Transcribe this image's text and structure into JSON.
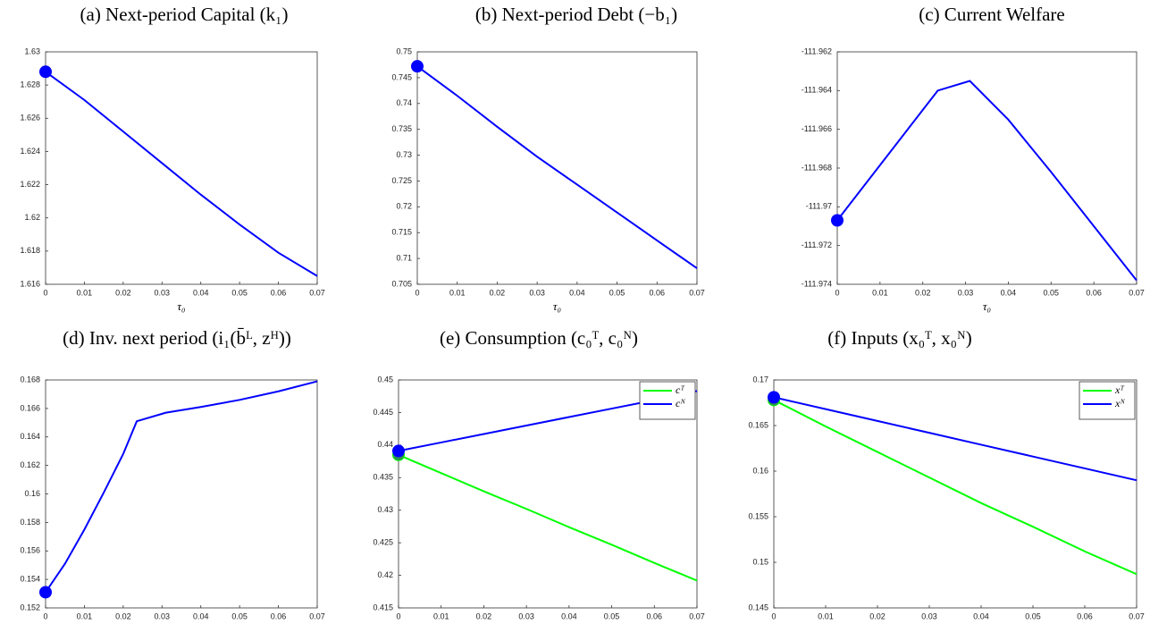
{
  "chart_data": [
    {
      "type": "line",
      "title": "(a) Next-period Capital (k₁)",
      "xlabel": "τ₀",
      "x": [
        0,
        0.01,
        0.02,
        0.03,
        0.04,
        0.05,
        0.06,
        0.07
      ],
      "series": [
        {
          "color": "#0000ff",
          "values": [
            1.6288,
            1.6271,
            1.6252,
            1.6233,
            1.6214,
            1.6196,
            1.6179,
            1.6165
          ]
        }
      ],
      "xlim": [
        0,
        0.07
      ],
      "ylim": [
        1.616,
        1.63
      ],
      "xticks": [
        0,
        0.01,
        0.02,
        0.03,
        0.04,
        0.05,
        0.06,
        0.07
      ],
      "yticks": [
        1.616,
        1.618,
        1.62,
        1.622,
        1.624,
        1.626,
        1.628,
        1.63
      ],
      "start_marker": true
    },
    {
      "type": "line",
      "title": "(b) Next-period Debt (−b₁)",
      "xlabel": "τ₀",
      "x": [
        0,
        0.01,
        0.02,
        0.03,
        0.04,
        0.05,
        0.06,
        0.07
      ],
      "series": [
        {
          "color": "#0000ff",
          "values": [
            0.7472,
            0.7415,
            0.7355,
            0.7297,
            0.7243,
            0.7189,
            0.7135,
            0.7081
          ]
        }
      ],
      "xlim": [
        0,
        0.07
      ],
      "ylim": [
        0.705,
        0.75
      ],
      "xticks": [
        0,
        0.01,
        0.02,
        0.03,
        0.04,
        0.05,
        0.06,
        0.07
      ],
      "yticks": [
        0.705,
        0.71,
        0.715,
        0.72,
        0.725,
        0.73,
        0.735,
        0.74,
        0.745,
        0.75
      ],
      "start_marker": true
    },
    {
      "type": "line",
      "title": "(c) Current Welfare",
      "xlabel": "τ₀",
      "x": [
        0,
        0.0235,
        0.031,
        0.04,
        0.05,
        0.06,
        0.07
      ],
      "series": [
        {
          "color": "#0000ff",
          "values": [
            -111.9707,
            -111.964,
            -111.9635,
            -111.9655,
            -111.9682,
            -111.971,
            -111.9738
          ]
        }
      ],
      "xlim": [
        0,
        0.07
      ],
      "ylim": [
        -111.974,
        -111.962
      ],
      "xticks": [
        0,
        0.01,
        0.02,
        0.03,
        0.04,
        0.05,
        0.06,
        0.07
      ],
      "yticks": [
        -111.974,
        -111.972,
        -111.97,
        -111.968,
        -111.966,
        -111.964,
        -111.962
      ],
      "start_marker": true
    },
    {
      "type": "line",
      "title": "(d) Inv. next period (i₁(b̄ᴸ, zᴴ))",
      "xlabel": "τ₀",
      "x": [
        0,
        0.005,
        0.01,
        0.015,
        0.02,
        0.0235,
        0.031,
        0.04,
        0.05,
        0.06,
        0.07
      ],
      "series": [
        {
          "color": "#0000ff",
          "values": [
            0.1531,
            0.1551,
            0.1575,
            0.1601,
            0.1628,
            0.1651,
            0.1657,
            0.1661,
            0.1666,
            0.1672,
            0.1679
          ]
        }
      ],
      "xlim": [
        0,
        0.07
      ],
      "ylim": [
        0.152,
        0.168
      ],
      "xticks": [
        0,
        0.01,
        0.02,
        0.03,
        0.04,
        0.05,
        0.06,
        0.07
      ],
      "yticks": [
        0.152,
        0.154,
        0.156,
        0.158,
        0.16,
        0.162,
        0.164,
        0.166,
        0.168
      ],
      "start_marker": true
    },
    {
      "type": "line",
      "title": "(e) Consumption (c₀ᵀ, c₀ᴺ)",
      "xlabel": "τ₀",
      "x": [
        0,
        0.01,
        0.02,
        0.03,
        0.04,
        0.05,
        0.06,
        0.07
      ],
      "series": [
        {
          "name": "cᵀ",
          "color": "#00ff00",
          "values": [
            0.4385,
            0.4357,
            0.4329,
            0.4302,
            0.4274,
            0.4247,
            0.4219,
            0.4192
          ]
        },
        {
          "name": "cᴺ",
          "color": "#0000ff",
          "values": [
            0.4391,
            0.4404,
            0.4417,
            0.443,
            0.4443,
            0.4456,
            0.4469,
            0.4483
          ]
        }
      ],
      "xlim": [
        0,
        0.07
      ],
      "ylim": [
        0.415,
        0.45
      ],
      "xticks": [
        0,
        0.01,
        0.02,
        0.03,
        0.04,
        0.05,
        0.06,
        0.07
      ],
      "yticks": [
        0.415,
        0.42,
        0.425,
        0.43,
        0.435,
        0.44,
        0.445,
        0.45
      ],
      "start_marker": true,
      "legend": "upper right"
    },
    {
      "type": "line",
      "title": "(f) Inputs (x₀ᵀ, x₀ᴺ)",
      "xlabel": "τ₀",
      "x": [
        0,
        0.01,
        0.02,
        0.03,
        0.04,
        0.05,
        0.06,
        0.07
      ],
      "series": [
        {
          "name": "xᵀ",
          "color": "#00ff00",
          "values": [
            0.1678,
            0.1649,
            0.1621,
            0.1593,
            0.1565,
            0.1539,
            0.1512,
            0.1487
          ]
        },
        {
          "name": "xᴺ",
          "color": "#0000ff",
          "values": [
            0.1681,
            0.1668,
            0.1655,
            0.1642,
            0.1629,
            0.1616,
            0.1603,
            0.159
          ]
        }
      ],
      "xlim": [
        0,
        0.07
      ],
      "ylim": [
        0.145,
        0.17
      ],
      "xticks": [
        0,
        0.01,
        0.02,
        0.03,
        0.04,
        0.05,
        0.06,
        0.07
      ],
      "yticks": [
        0.145,
        0.15,
        0.155,
        0.16,
        0.165,
        0.17
      ],
      "start_marker": true,
      "legend": "upper right"
    }
  ]
}
